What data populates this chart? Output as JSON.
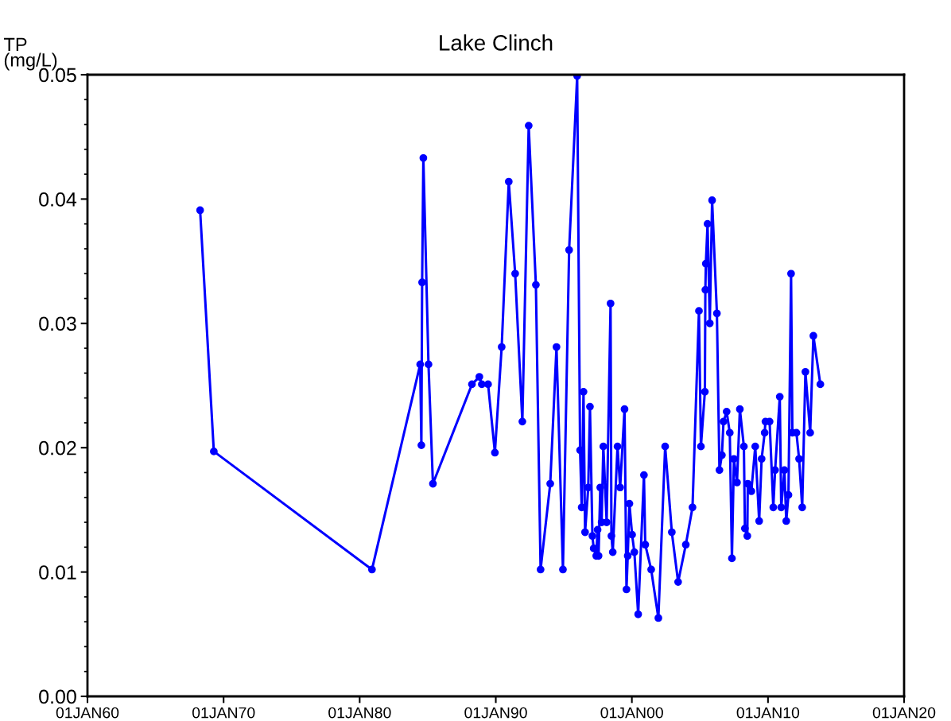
{
  "chart_data": {
    "type": "line",
    "title": "Lake Clinch",
    "ylabel": "TP\n(mg/L)",
    "xlim": [
      "1960-01-01",
      "2020-01-01"
    ],
    "xticks": [
      {
        "value": "1960-01-01",
        "label": "01JAN60"
      },
      {
        "value": "1970-01-01",
        "label": "01JAN70"
      },
      {
        "value": "1980-01-01",
        "label": "01JAN80"
      },
      {
        "value": "1990-01-01",
        "label": "01JAN90"
      },
      {
        "value": "2000-01-01",
        "label": "01JAN00"
      },
      {
        "value": "2010-01-01",
        "label": "01JAN10"
      },
      {
        "value": "2020-01-01",
        "label": "01JAN20"
      }
    ],
    "ylim": [
      0,
      0.05
    ],
    "yticks": [
      {
        "value": 0,
        "label": "0.00"
      },
      0.01,
      0.02,
      0.03,
      0.04,
      0.05
    ],
    "grid": false,
    "marker": "circle",
    "line_style": "solid",
    "series": [
      {
        "color": "#0000ff",
        "x": [
          "1968-04-11",
          "1969-04-14",
          "1980-11-26",
          "1984-06-12",
          "1984-07-14",
          "1984-08-03",
          "1984-09-05",
          "1985-01-21",
          "1985-05-20",
          "1988-04-01",
          "1988-10-17",
          "1988-12-22",
          "1989-06-08",
          "1989-12-08",
          "1990-06-08",
          "1990-12-15",
          "1991-06-05",
          "1991-12-15",
          "1992-06-02",
          "1992-12-12",
          "1993-04-17",
          "1994-01-01",
          "1994-06-18",
          "1994-12-08",
          "1995-05-23",
          "1995-12-25",
          "1996-03-12",
          "1996-04-24",
          "1996-06-12",
          "1996-07-24",
          "1996-10-17",
          "1996-12-02",
          "1997-02-06",
          "1997-03-12",
          "1997-05-20",
          "1997-06-25",
          "1997-07-21",
          "1997-09-05",
          "1997-10-11",
          "1997-11-26",
          "1998-02-23",
          "1998-06-08",
          "1998-07-01",
          "1998-08-06",
          "1998-12-12",
          "1999-02-20",
          "1999-06-18",
          "1999-08-09",
          "1999-09-12",
          "1999-10-27",
          "2000-01-07",
          "2000-03-08",
          "2000-06-18",
          "2000-11-20",
          "2000-12-25",
          "2001-06-02",
          "2001-12-12",
          "2002-06-12",
          "2002-12-08",
          "2003-05-26",
          "2003-12-18",
          "2004-06-15",
          "2004-12-05",
          "2005-01-27",
          "2005-05-13",
          "2005-05-26",
          "2005-06-08",
          "2005-07-24",
          "2005-09-22",
          "2005-11-23",
          "2006-04-01",
          "2006-06-08",
          "2006-08-13",
          "2006-09-25",
          "2006-12-18",
          "2007-03-12",
          "2007-05-09",
          "2007-07-01",
          "2007-09-22",
          "2007-12-08",
          "2008-03-25",
          "2008-04-21",
          "2008-06-25",
          "2008-07-07",
          "2008-10-11",
          "2009-01-24",
          "2009-05-09",
          "2009-07-14",
          "2009-10-04",
          "2009-10-24",
          "2010-02-13",
          "2010-05-23",
          "2010-07-11",
          "2010-11-13",
          "2010-12-22",
          "2011-03-18",
          "2011-05-06",
          "2011-07-04",
          "2011-09-12",
          "2011-10-17",
          "2012-02-03",
          "2012-04-14",
          "2012-07-07",
          "2012-10-01",
          "2013-02-06",
          "2013-05-03",
          "2013-11-06"
        ],
        "values": [
          0.0391,
          0.0197,
          0.0102,
          0.0267,
          0.0202,
          0.0333,
          0.0433,
          0.0267,
          0.0171,
          0.0251,
          0.0257,
          0.0251,
          0.0251,
          0.0196,
          0.0281,
          0.0414,
          0.034,
          0.0221,
          0.0459,
          0.0331,
          0.0102,
          0.0171,
          0.0281,
          0.0102,
          0.0359,
          0.0499,
          0.0198,
          0.0152,
          0.0245,
          0.0132,
          0.0168,
          0.0233,
          0.0129,
          0.0119,
          0.0113,
          0.0134,
          0.0113,
          0.0168,
          0.014,
          0.0201,
          0.014,
          0.0316,
          0.0129,
          0.0116,
          0.0201,
          0.0168,
          0.0231,
          0.0086,
          0.0113,
          0.0155,
          0.013,
          0.0116,
          0.0066,
          0.0178,
          0.0122,
          0.0102,
          0.0063,
          0.0201,
          0.0132,
          0.0092,
          0.0122,
          0.0152,
          0.031,
          0.0201,
          0.0245,
          0.0327,
          0.0348,
          0.038,
          0.03,
          0.0399,
          0.0308,
          0.0182,
          0.0194,
          0.0221,
          0.0229,
          0.0212,
          0.0111,
          0.0191,
          0.0172,
          0.0231,
          0.0201,
          0.0135,
          0.0129,
          0.0171,
          0.0165,
          0.0201,
          0.0141,
          0.0191,
          0.0212,
          0.0221,
          0.0221,
          0.0152,
          0.0182,
          0.0241,
          0.0152,
          0.0182,
          0.0141,
          0.0162,
          0.034,
          0.0212,
          0.0212,
          0.0191,
          0.0152,
          0.0261,
          0.0212,
          0.029,
          0.0251
        ]
      }
    ]
  }
}
